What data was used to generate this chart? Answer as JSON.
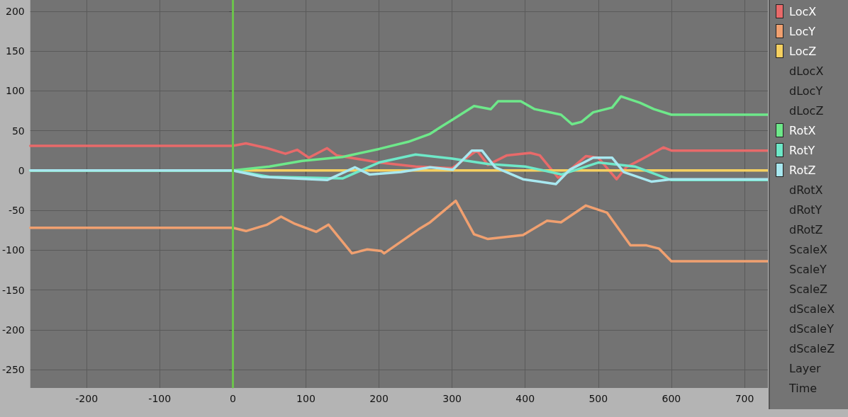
{
  "chart_data": {
    "type": "line",
    "xlim": [
      -277,
      732
    ],
    "ylim": [
      -273,
      214
    ],
    "xticks": [
      -200,
      -100,
      0,
      100,
      200,
      300,
      400,
      500,
      600,
      700
    ],
    "yticks": [
      -250,
      -200,
      -150,
      -100,
      -50,
      0,
      50,
      100,
      150,
      200
    ],
    "grid": true,
    "legend": "right",
    "marker": "none",
    "line_style": "solid",
    "ref_lines": [
      {
        "axis": "x",
        "value": 0,
        "color": "#6cc34c"
      }
    ],
    "series": [
      {
        "name": "LocX",
        "color": "#e86a6a",
        "x": [
          -277,
          0,
          18,
          47,
          72,
          88,
          104,
          129,
          142,
          200,
          250,
          300,
          334,
          349,
          375,
          407,
          420,
          445,
          455,
          483,
          500,
          525,
          538,
          557,
          589,
          600,
          732
        ],
        "values": [
          31,
          31,
          34,
          28,
          21,
          26,
          16,
          28,
          19,
          10,
          5,
          3,
          25,
          7,
          19,
          22,
          19,
          -9,
          -4,
          18,
          16,
          -11,
          4,
          13,
          29,
          25,
          25
        ]
      },
      {
        "name": "LocY",
        "color": "#f0a070",
        "x": [
          -277,
          0,
          18,
          47,
          66,
          85,
          114,
          131,
          163,
          184,
          203,
          207,
          254,
          270,
          305,
          330,
          349,
          397,
          430,
          449,
          483,
          512,
          544,
          566,
          583,
          600,
          732
        ],
        "values": [
          -72,
          -72,
          -76,
          -68,
          -58,
          -67,
          -77,
          -68,
          -104,
          -99,
          -101,
          -104,
          -74,
          -65,
          -38,
          -80,
          -86,
          -81,
          -63,
          -65,
          -44,
          -53,
          -94,
          -94,
          -98,
          -114,
          -114
        ]
      },
      {
        "name": "LocZ",
        "color": "#f5d060",
        "x": [
          -277,
          0,
          600,
          732
        ],
        "values": [
          0,
          0,
          0,
          0
        ]
      },
      {
        "name": "dLocX"
      },
      {
        "name": "dLocY"
      },
      {
        "name": "dLocZ"
      },
      {
        "name": "RotX",
        "color": "#6ee88a",
        "x": [
          -277,
          0,
          50,
          95,
          150,
          200,
          240,
          270,
          285,
          301,
          330,
          353,
          363,
          394,
          413,
          449,
          464,
          477,
          493,
          519,
          531,
          557,
          576,
          600,
          732
        ],
        "values": [
          0,
          0,
          5,
          12,
          17,
          27,
          36,
          46,
          55,
          64,
          81,
          77,
          87,
          87,
          77,
          70,
          58,
          61,
          73,
          79,
          93,
          85,
          77,
          70,
          70
        ]
      },
      {
        "name": "RotY",
        "color": "#6ee8c8",
        "x": [
          -277,
          0,
          50,
          150,
          200,
          250,
          300,
          350,
          400,
          450,
          500,
          550,
          600,
          732
        ],
        "values": [
          0,
          0,
          -8,
          -10,
          10,
          20,
          15,
          8,
          5,
          -5,
          10,
          5,
          -12,
          -12
        ]
      },
      {
        "name": "RotZ",
        "color": "#a8e8f0",
        "x": [
          -277,
          0,
          40,
          129,
          167,
          187,
          230,
          270,
          301,
          327,
          341,
          359,
          397,
          442,
          461,
          493,
          519,
          535,
          573,
          600,
          732
        ],
        "values": [
          0,
          0,
          -8,
          -12,
          4,
          -5,
          -2,
          4,
          1,
          25,
          25,
          4,
          -11,
          -17,
          1,
          16,
          16,
          -2,
          -14,
          -11,
          -11
        ]
      },
      {
        "name": "dRotX"
      },
      {
        "name": "dRotY"
      },
      {
        "name": "dRotZ"
      },
      {
        "name": "ScaleX"
      },
      {
        "name": "ScaleY"
      },
      {
        "name": "ScaleZ"
      },
      {
        "name": "dScaleX"
      },
      {
        "name": "dScaleY"
      },
      {
        "name": "dScaleZ"
      },
      {
        "name": "Layer"
      },
      {
        "name": "Time"
      }
    ]
  }
}
